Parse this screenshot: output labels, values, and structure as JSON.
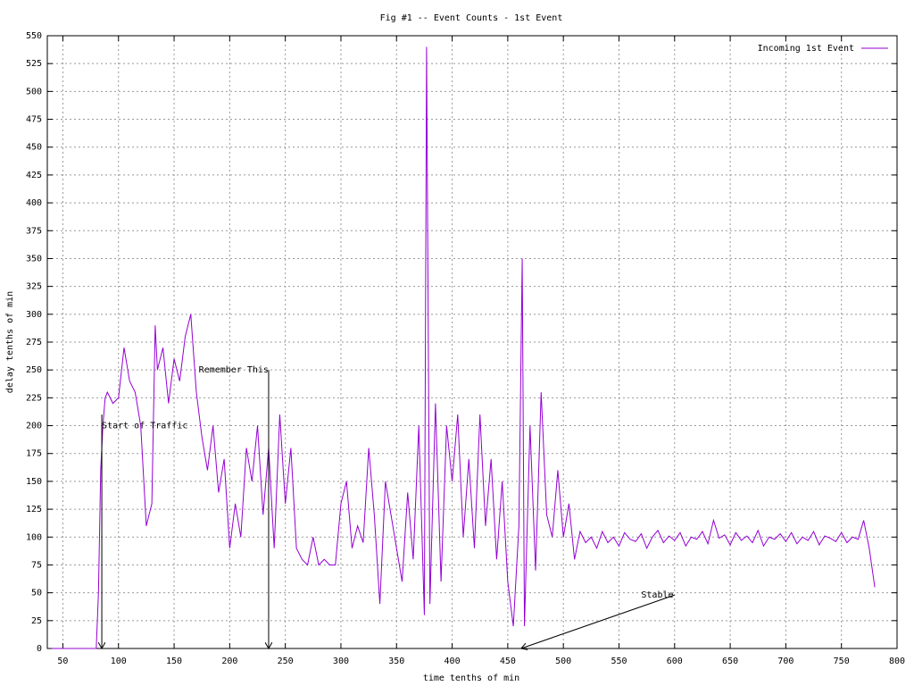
{
  "chart_data": {
    "type": "line",
    "title": "Fig #1 -- Event Counts - 1st Event",
    "x_label": "time tenths of min",
    "y_label": "delay tenths of min",
    "xlim": [
      36,
      800
    ],
    "ylim": [
      0,
      550
    ],
    "xticks": [
      50,
      100,
      150,
      200,
      250,
      300,
      350,
      400,
      450,
      500,
      550,
      600,
      650,
      700,
      750,
      800
    ],
    "yticks": [
      0,
      25,
      50,
      75,
      100,
      125,
      150,
      175,
      200,
      225,
      250,
      275,
      300,
      325,
      350,
      375,
      400,
      425,
      450,
      475,
      500,
      525,
      550
    ],
    "grid": true,
    "legend_position": "top-right",
    "x": [
      40,
      45,
      50,
      55,
      60,
      65,
      70,
      75,
      80,
      82,
      84,
      86,
      88,
      90,
      95,
      100,
      105,
      110,
      115,
      120,
      125,
      130,
      133,
      135,
      140,
      145,
      150,
      155,
      160,
      165,
      170,
      175,
      180,
      185,
      190,
      195,
      200,
      205,
      210,
      215,
      220,
      225,
      230,
      235,
      240,
      245,
      250,
      255,
      260,
      265,
      270,
      275,
      280,
      285,
      290,
      295,
      300,
      305,
      310,
      315,
      320,
      325,
      330,
      335,
      340,
      345,
      350,
      355,
      360,
      365,
      370,
      375,
      377,
      380,
      385,
      390,
      395,
      400,
      405,
      410,
      415,
      420,
      425,
      430,
      435,
      440,
      445,
      450,
      455,
      460,
      463,
      465,
      470,
      475,
      480,
      485,
      490,
      495,
      500,
      505,
      510,
      515,
      520,
      525,
      530,
      535,
      540,
      545,
      550,
      555,
      560,
      565,
      570,
      575,
      580,
      585,
      590,
      595,
      600,
      605,
      610,
      615,
      620,
      625,
      630,
      635,
      640,
      645,
      650,
      655,
      660,
      665,
      670,
      675,
      680,
      685,
      690,
      695,
      700,
      705,
      710,
      715,
      720,
      725,
      730,
      735,
      740,
      745,
      750,
      755,
      760,
      765,
      770,
      775,
      780
    ],
    "series": [
      {
        "name": "Incoming 1st Event",
        "color": "#9400d3",
        "values": [
          0,
          0,
          0,
          0,
          0,
          0,
          0,
          0,
          0,
          50,
          160,
          200,
          225,
          230,
          220,
          225,
          270,
          240,
          230,
          200,
          110,
          130,
          290,
          250,
          270,
          220,
          260,
          240,
          280,
          300,
          230,
          190,
          160,
          200,
          140,
          170,
          90,
          130,
          100,
          180,
          150,
          200,
          120,
          180,
          90,
          210,
          130,
          180,
          90,
          80,
          75,
          100,
          75,
          80,
          75,
          75,
          130,
          150,
          90,
          110,
          95,
          180,
          120,
          40,
          150,
          120,
          90,
          60,
          140,
          80,
          200,
          30,
          540,
          40,
          220,
          60,
          200,
          150,
          210,
          100,
          170,
          90,
          210,
          110,
          170,
          80,
          150,
          60,
          20,
          110,
          350,
          20,
          200,
          70,
          230,
          120,
          100,
          160,
          100,
          130,
          80,
          105,
          95,
          100,
          90,
          105,
          95,
          100,
          92,
          104,
          98,
          96,
          103,
          90,
          100,
          106,
          95,
          101,
          97,
          104,
          92,
          100,
          98,
          105,
          94,
          115,
          99,
          102,
          93,
          104,
          97,
          101,
          95,
          106,
          92,
          100,
          98,
          103,
          96,
          104,
          94,
          100,
          97,
          105,
          93,
          101,
          99,
          96,
          104,
          95,
          100,
          98,
          115,
          90,
          55
        ]
      }
    ],
    "annotations": [
      {
        "text": "Start of Traffic",
        "x": 85,
        "y": 200,
        "align": "left",
        "arrow_from": [
          85,
          210
        ],
        "arrow_to": [
          85,
          0
        ]
      },
      {
        "text": "Remember This",
        "x": 235,
        "y": 250,
        "align": "right",
        "arrow_from": [
          235,
          250
        ],
        "arrow_to": [
          235,
          0
        ]
      },
      {
        "text": "Stable",
        "x": 570,
        "y": 48,
        "align": "left",
        "arrow_from": [
          600,
          48
        ],
        "arrow_to": [
          462,
          0
        ]
      }
    ]
  }
}
